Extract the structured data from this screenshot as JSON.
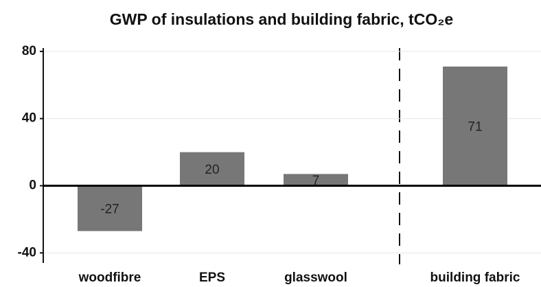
{
  "chart_data": {
    "type": "bar",
    "title": "GWP of insulations and building fabric, tCO₂e",
    "categories": [
      "woodfibre",
      "EPS",
      "glasswool",
      "building fabric"
    ],
    "values": [
      -27,
      20,
      7,
      71
    ],
    "color": "#777777",
    "ylim": [
      -46,
      82
    ],
    "yticks": [
      -40,
      0,
      40,
      80
    ],
    "grid": true
  }
}
